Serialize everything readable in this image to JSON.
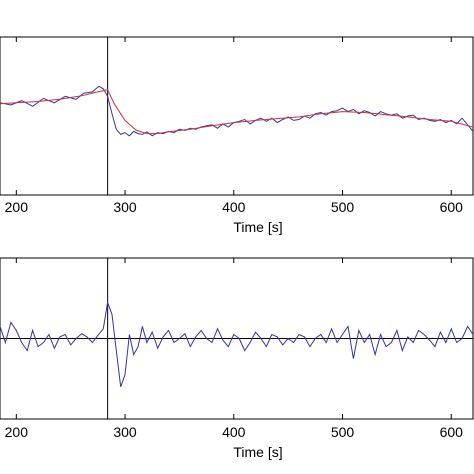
{
  "chart_data": [
    {
      "type": "line",
      "xlabel": "Time [s]",
      "ylabel": "",
      "xlim": [
        185,
        620
      ],
      "ylim": [
        -1.8,
        1.8
      ],
      "xticks": [
        200,
        300,
        400,
        500,
        600
      ],
      "xtick_labels": [
        "200",
        "300",
        "400",
        "500",
        "600"
      ],
      "grid": false,
      "vline_x": 284,
      "series": [
        {
          "color": "#3333aa",
          "x": [
            185,
            195,
            205,
            215,
            225,
            235,
            245,
            255,
            262,
            270,
            276,
            280,
            284,
            288,
            292,
            296,
            300,
            304,
            308,
            312,
            316,
            320,
            325,
            330,
            335,
            340,
            345,
            350,
            355,
            360,
            365,
            370,
            375,
            380,
            385,
            390,
            395,
            400,
            405,
            410,
            415,
            420,
            425,
            430,
            435,
            440,
            445,
            450,
            455,
            460,
            465,
            470,
            475,
            480,
            485,
            490,
            495,
            500,
            505,
            510,
            515,
            520,
            525,
            530,
            535,
            540,
            545,
            550,
            555,
            560,
            565,
            570,
            575,
            580,
            585,
            590,
            595,
            600,
            605,
            610,
            615,
            620
          ],
          "y": [
            0.3,
            0.25,
            0.35,
            0.22,
            0.4,
            0.3,
            0.45,
            0.38,
            0.52,
            0.55,
            0.68,
            0.62,
            0.45,
            0.05,
            -0.3,
            -0.42,
            -0.38,
            -0.45,
            -0.35,
            -0.4,
            -0.42,
            -0.36,
            -0.45,
            -0.38,
            -0.4,
            -0.35,
            -0.38,
            -0.3,
            -0.33,
            -0.28,
            -0.3,
            -0.25,
            -0.22,
            -0.2,
            -0.28,
            -0.18,
            -0.25,
            -0.15,
            -0.12,
            -0.08,
            -0.18,
            -0.1,
            -0.05,
            -0.12,
            -0.05,
            -0.15,
            -0.08,
            -0.02,
            -0.1,
            -0.08,
            0.0,
            -0.05,
            0.05,
            0.08,
            0.02,
            0.1,
            0.12,
            0.18,
            0.1,
            0.15,
            0.05,
            0.12,
            0.08,
            0.0,
            0.1,
            0.05,
            0.02,
            0.05,
            -0.05,
            0.0,
            0.02,
            -0.08,
            -0.05,
            -0.1,
            -0.12,
            -0.08,
            -0.15,
            -0.1,
            -0.18,
            -0.05,
            -0.2,
            -0.35
          ]
        },
        {
          "color": "#cc3333",
          "x": [
            185,
            200,
            220,
            240,
            260,
            275,
            284,
            290,
            300,
            310,
            320,
            330,
            340,
            360,
            380,
            400,
            420,
            440,
            460,
            480,
            500,
            520,
            540,
            560,
            580,
            600,
            620
          ],
          "y": [
            0.28,
            0.3,
            0.33,
            0.38,
            0.46,
            0.55,
            0.6,
            0.28,
            -0.1,
            -0.32,
            -0.4,
            -0.4,
            -0.36,
            -0.3,
            -0.22,
            -0.15,
            -0.1,
            -0.06,
            -0.02,
            0.05,
            0.1,
            0.08,
            0.03,
            -0.02,
            -0.08,
            -0.12,
            -0.25
          ]
        }
      ]
    },
    {
      "type": "line",
      "xlabel": "Time [s]",
      "ylabel": "",
      "xlim": [
        185,
        620
      ],
      "ylim": [
        -1.0,
        1.0
      ],
      "xticks": [
        200,
        300,
        400,
        500,
        600
      ],
      "xtick_labels": [
        "200",
        "300",
        "400",
        "500",
        "600"
      ],
      "grid": false,
      "hline_y": 0,
      "vline_x": 284,
      "series": [
        {
          "color": "#3333aa",
          "x": [
            185,
            190,
            195,
            200,
            205,
            210,
            215,
            220,
            225,
            230,
            235,
            240,
            245,
            250,
            255,
            260,
            265,
            270,
            275,
            280,
            284,
            288,
            292,
            296,
            300,
            304,
            308,
            312,
            316,
            320,
            325,
            330,
            335,
            340,
            345,
            350,
            355,
            360,
            365,
            370,
            375,
            380,
            385,
            390,
            395,
            400,
            405,
            410,
            415,
            420,
            425,
            430,
            435,
            440,
            445,
            450,
            455,
            460,
            465,
            470,
            475,
            480,
            485,
            490,
            495,
            500,
            505,
            510,
            515,
            520,
            525,
            530,
            535,
            540,
            545,
            550,
            555,
            560,
            565,
            570,
            575,
            580,
            585,
            590,
            595,
            600,
            605,
            610,
            615,
            620
          ],
          "y": [
            0.15,
            -0.05,
            0.2,
            0.1,
            -0.05,
            -0.15,
            0.1,
            -0.1,
            -0.05,
            0.05,
            -0.12,
            0.02,
            0.05,
            -0.08,
            0.0,
            0.06,
            0.02,
            -0.05,
            0.04,
            0.12,
            0.45,
            0.3,
            -0.15,
            -0.6,
            -0.45,
            0.05,
            -0.2,
            -0.1,
            0.15,
            -0.05,
            0.08,
            -0.12,
            0.02,
            0.1,
            -0.05,
            0.0,
            0.06,
            -0.1,
            0.02,
            0.1,
            0.0,
            -0.05,
            0.12,
            -0.02,
            -0.1,
            0.05,
            0.0,
            -0.15,
            -0.05,
            0.08,
            0.0,
            -0.1,
            0.05,
            0.02,
            -0.08,
            0.0,
            -0.05,
            0.05,
            0.02,
            -0.1,
            0.0,
            0.05,
            -0.05,
            0.12,
            -0.05,
            0.05,
            0.15,
            -0.25,
            0.1,
            -0.05,
            0.05,
            -0.2,
            0.05,
            -0.1,
            -0.05,
            0.1,
            -0.15,
            0.02,
            -0.05,
            0.1,
            0.05,
            -0.02,
            -0.1,
            0.08,
            -0.05,
            0.12,
            -0.05,
            0.0,
            0.15,
            0.05
          ]
        }
      ]
    }
  ]
}
